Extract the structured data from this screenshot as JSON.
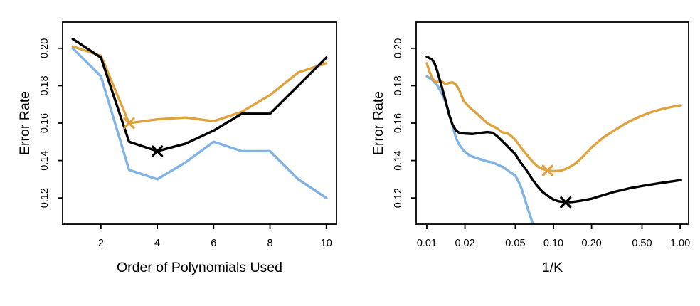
{
  "figure": {
    "background": "#ffffff",
    "axis_color": "#000000",
    "series_colors": {
      "black": "#000000",
      "orange": "#E0A23D",
      "blue": "#7FB2E5"
    }
  },
  "chart_data": [
    {
      "type": "line",
      "title": "",
      "xlabel": "Order of Polynomials Used",
      "ylabel": "Error Rate",
      "x_scale": "linear",
      "xlim": [
        0.64,
        10.36
      ],
      "ylim": [
        0.106,
        0.214
      ],
      "grid": false,
      "legend": "none",
      "x_tick_values": [
        2,
        4,
        6,
        8,
        10
      ],
      "x_tick_labels": [
        "2",
        "4",
        "6",
        "8",
        "10"
      ],
      "y_tick_values": [
        0.12,
        0.14,
        0.16,
        0.18,
        0.2
      ],
      "y_tick_labels": [
        "0.12",
        "0.14",
        "0.16",
        "0.18",
        "0.20"
      ],
      "series": [
        {
          "name": "blue-curve",
          "color": "#7FB2E5",
          "x": [
            1,
            2,
            3,
            4,
            5,
            6,
            7,
            8,
            9,
            10
          ],
          "y": [
            0.2,
            0.185,
            0.135,
            0.13,
            0.139,
            0.15,
            0.145,
            0.145,
            0.13,
            0.12
          ]
        },
        {
          "name": "orange-curve",
          "color": "#E0A23D",
          "x": [
            1,
            2,
            3,
            4,
            5,
            6,
            7,
            8,
            9,
            10
          ],
          "y": [
            0.201,
            0.196,
            0.16,
            0.162,
            0.163,
            0.161,
            0.166,
            0.175,
            0.187,
            0.192
          ],
          "min_marker": {
            "x": 3,
            "y": 0.16
          }
        },
        {
          "name": "black-curve",
          "color": "#000000",
          "x": [
            1,
            2,
            3,
            4,
            5,
            6,
            7,
            8,
            9,
            10
          ],
          "y": [
            0.205,
            0.195,
            0.15,
            0.145,
            0.149,
            0.156,
            0.165,
            0.165,
            0.18,
            0.195
          ],
          "min_marker": {
            "x": 4,
            "y": 0.145
          }
        }
      ]
    },
    {
      "type": "line",
      "title": "",
      "xlabel": "1/K",
      "ylabel": "Error Rate",
      "x_scale": "log",
      "xlim": [
        0.00824,
        1.167
      ],
      "ylim": [
        0.106,
        0.214
      ],
      "grid": false,
      "legend": "none",
      "x_tick_values": [
        0.01,
        0.02,
        0.05,
        0.1,
        0.2,
        0.5,
        1.0
      ],
      "x_tick_labels": [
        "0.01",
        "0.02",
        "0.05",
        "0.10",
        "0.20",
        "0.50",
        "1.00"
      ],
      "y_tick_values": [
        0.12,
        0.14,
        0.16,
        0.18,
        0.2
      ],
      "y_tick_labels": [
        "0.12",
        "0.14",
        "0.16",
        "0.18",
        "0.20"
      ],
      "series": [
        {
          "name": "blue-curve",
          "color": "#7FB2E5",
          "x": [
            0.01,
            0.011,
            0.012,
            0.013,
            0.014,
            0.015,
            0.016,
            0.017,
            0.018,
            0.0196,
            0.022,
            0.0257,
            0.03,
            0.033,
            0.037,
            0.04,
            0.045,
            0.05,
            0.055,
            0.06,
            0.065,
            0.0685,
            0.071
          ],
          "y": [
            0.185,
            0.1832,
            0.1805,
            0.1765,
            0.1715,
            0.1652,
            0.1585,
            0.152,
            0.1485,
            0.1452,
            0.1425,
            0.141,
            0.1395,
            0.139,
            0.1375,
            0.1365,
            0.134,
            0.132,
            0.1265,
            0.1185,
            0.111,
            0.1065,
            0.103
          ]
        },
        {
          "name": "orange-curve",
          "color": "#E0A23D",
          "x": [
            0.01,
            0.0105,
            0.011,
            0.0115,
            0.012,
            0.0128,
            0.0135,
            0.014,
            0.015,
            0.016,
            0.017,
            0.018,
            0.0196,
            0.021,
            0.023,
            0.0257,
            0.028,
            0.03,
            0.033,
            0.036,
            0.039,
            0.043,
            0.047,
            0.05,
            0.055,
            0.061,
            0.068,
            0.075,
            0.082,
            0.09,
            0.1,
            0.115,
            0.13,
            0.15,
            0.17,
            0.2,
            0.25,
            0.3,
            0.35,
            0.4,
            0.5,
            0.6,
            0.7,
            0.85,
            1.0
          ],
          "y": [
            0.192,
            0.1875,
            0.1842,
            0.1824,
            0.1818,
            0.1826,
            0.1818,
            0.1808,
            0.1815,
            0.1818,
            0.1806,
            0.1778,
            0.1717,
            0.1695,
            0.167,
            0.1642,
            0.1618,
            0.16,
            0.1585,
            0.1572,
            0.1552,
            0.1547,
            0.1528,
            0.151,
            0.1472,
            0.1434,
            0.1396,
            0.1368,
            0.1355,
            0.1347,
            0.1343,
            0.1346,
            0.136,
            0.1385,
            0.142,
            0.147,
            0.1525,
            0.156,
            0.1588,
            0.161,
            0.164,
            0.166,
            0.1673,
            0.1686,
            0.1695
          ],
          "min_marker": {
            "x": 0.09,
            "y": 0.1347
          }
        },
        {
          "name": "black-curve",
          "color": "#000000",
          "x": [
            0.01,
            0.011,
            0.0115,
            0.012,
            0.013,
            0.014,
            0.015,
            0.016,
            0.017,
            0.018,
            0.02,
            0.023,
            0.026,
            0.03,
            0.033,
            0.036,
            0.04,
            0.045,
            0.05,
            0.055,
            0.061,
            0.068,
            0.075,
            0.082,
            0.09,
            0.1,
            0.11,
            0.125,
            0.14,
            0.16,
            0.18,
            0.2,
            0.25,
            0.3,
            0.4,
            0.5,
            0.7,
            0.85,
            1.0
          ],
          "y": [
            0.1955,
            0.194,
            0.192,
            0.1885,
            0.1805,
            0.1725,
            0.1645,
            0.159,
            0.156,
            0.1549,
            0.1544,
            0.1542,
            0.1547,
            0.1552,
            0.1549,
            0.153,
            0.15,
            0.1465,
            0.1434,
            0.139,
            0.135,
            0.13,
            0.1262,
            0.1232,
            0.1212,
            0.1192,
            0.1182,
            0.1177,
            0.1178,
            0.1184,
            0.119,
            0.1196,
            0.1216,
            0.1232,
            0.1252,
            0.1264,
            0.128,
            0.1288,
            0.1295
          ],
          "min_marker": {
            "x": 0.125,
            "y": 0.1177
          }
        }
      ]
    }
  ]
}
